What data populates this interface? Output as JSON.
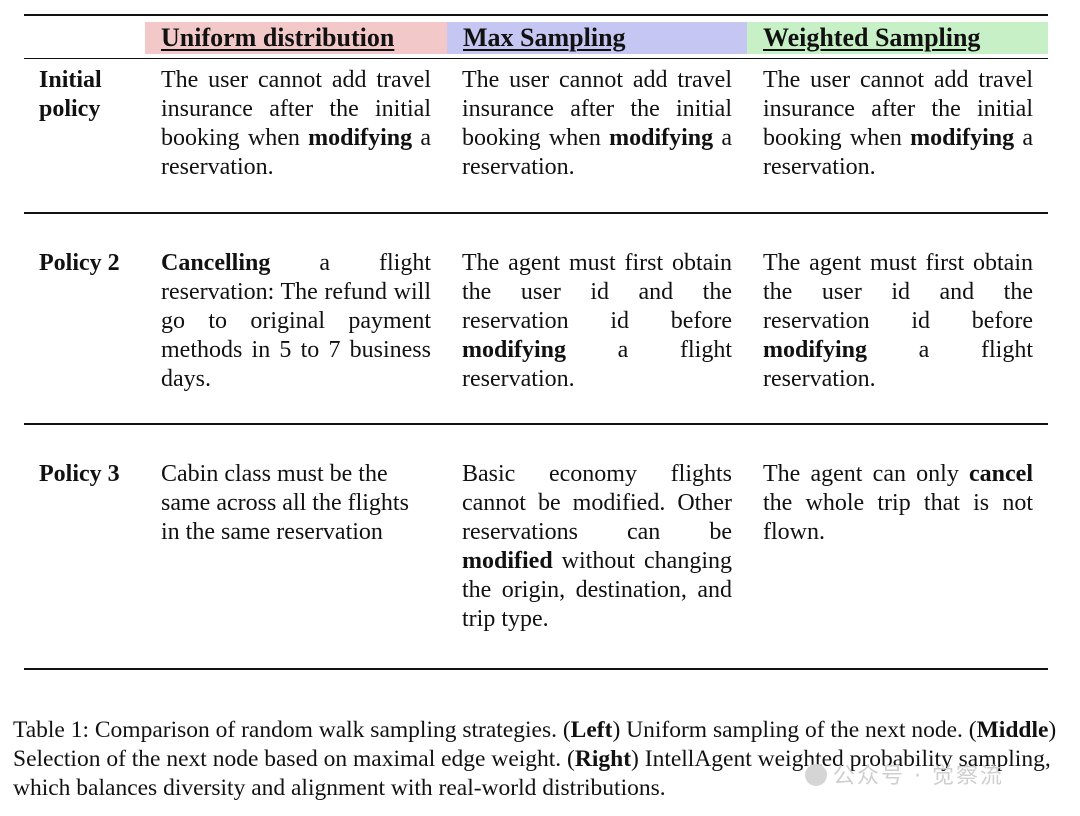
{
  "table": {
    "columns": [
      {
        "label": "Uniform distribution",
        "color": "#f3c8c8"
      },
      {
        "label": "Max Sampling",
        "color": "#c6c6f3"
      },
      {
        "label": "Weighted Sampling",
        "color": "#c7f0c7"
      }
    ],
    "rows": [
      {
        "label": "Initial policy",
        "label_line1": "Initial",
        "label_line2": "policy",
        "cells": [
          {
            "pre": "The user cannot add travel insurance after the initial booking when ",
            "bold": "modifying",
            "post": " a reservation."
          },
          {
            "pre": "The user cannot add travel insurance after the initial booking when ",
            "bold": "modifying",
            "post": " a reservation."
          },
          {
            "pre": "The user cannot add travel insurance after the initial booking when ",
            "bold": "modifying",
            "post": " a reservation."
          }
        ]
      },
      {
        "label": "Policy 2",
        "cells": [
          {
            "pre": "",
            "bold": "Cancelling",
            "post": " a flight reservation: The refund will go to original payment methods in 5 to 7 business days."
          },
          {
            "pre": "The agent must first obtain the user id and the reservation id before ",
            "bold": "modifying",
            "post": " a flight reservation."
          },
          {
            "pre": "The agent must first obtain the user id and the reservation id before ",
            "bold": "modifying",
            "post": " a flight reservation."
          }
        ]
      },
      {
        "label": "Policy 3",
        "cells": [
          {
            "pre": "Cabin class must be the same across all the flights in the same reservation",
            "bold": "",
            "post": ""
          },
          {
            "pre": "Basic economy flights cannot be modified. Other reservations can be ",
            "bold": "modified",
            "post": " without changing the origin, destination, and trip type."
          },
          {
            "pre": "The agent can only ",
            "bold": "cancel",
            "post": " the whole trip that is not flown."
          }
        ]
      }
    ]
  },
  "caption": {
    "prefix": "Table 1: Comparison of random walk sampling strategies. (",
    "left_label": "Left",
    "left_text": ") Uniform sampling of the next node. (",
    "middle_label": "Middle",
    "middle_text": ") Selection of the next node based on maximal edge weight. (",
    "right_label": "Right",
    "right_text": ") IntellAgent weighted probability sampling, which balances diversity and alignment with real-world distributions."
  },
  "watermark": "公众号 · 觉察流"
}
